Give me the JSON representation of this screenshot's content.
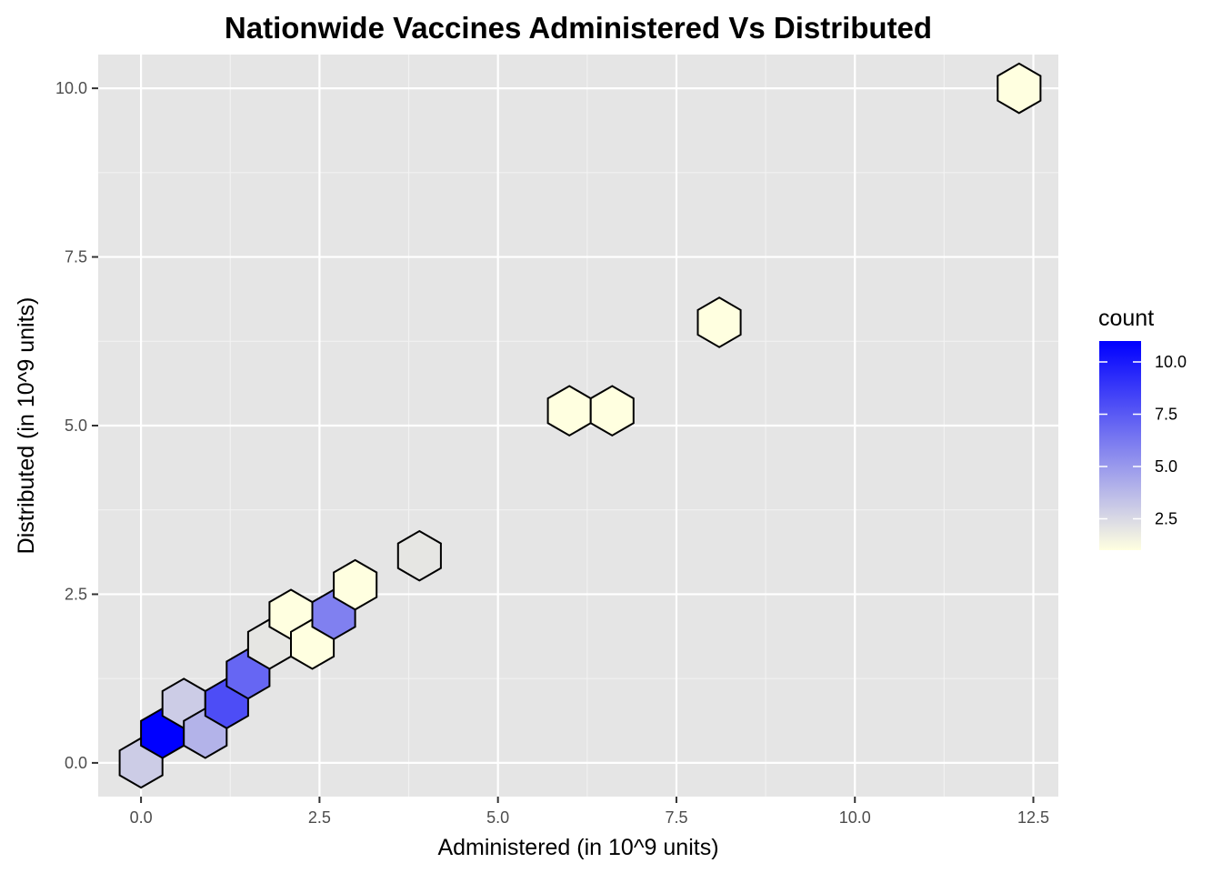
{
  "chart_data": {
    "type": "hexbin",
    "title": "Nationwide Vaccines Administered Vs Distributed",
    "xlabel": "Administered (in 10^9 units)",
    "ylabel": "Distributed (in 10^9 units)",
    "xlim": [
      -0.6,
      12.85
    ],
    "ylim": [
      -0.5,
      10.5
    ],
    "x_ticks": [
      0,
      2.5,
      5,
      7.5,
      10,
      12.5
    ],
    "x_tick_labels": [
      "0.0",
      "2.5",
      "5.0",
      "7.5",
      "10.0",
      "12.5"
    ],
    "y_ticks": [
      0,
      2.5,
      5,
      7.5,
      10
    ],
    "y_tick_labels": [
      "0.0",
      "2.5",
      "5.0",
      "7.5",
      "10.0"
    ],
    "grid": true,
    "legend": {
      "title": "count",
      "position": "right",
      "ticks": [
        2.5,
        5,
        7.5,
        10
      ],
      "tick_labels": [
        "2.5",
        "5.0",
        "7.5",
        "10.0"
      ],
      "min": 1,
      "max": 11
    },
    "color_scale": {
      "low": "#ffffe0",
      "high": "#0000ff"
    },
    "bins": [
      {
        "x": 0.0,
        "y": 0.0,
        "count": 3
      },
      {
        "x": 0.3,
        "y": 0.44,
        "count": 11
      },
      {
        "x": 0.6,
        "y": 0.88,
        "count": 3
      },
      {
        "x": 0.9,
        "y": 0.44,
        "count": 4
      },
      {
        "x": 1.2,
        "y": 0.88,
        "count": 8
      },
      {
        "x": 1.5,
        "y": 1.32,
        "count": 7
      },
      {
        "x": 1.8,
        "y": 1.76,
        "count": 2
      },
      {
        "x": 2.1,
        "y": 2.2,
        "count": 1
      },
      {
        "x": 2.4,
        "y": 1.76,
        "count": 1
      },
      {
        "x": 2.7,
        "y": 2.2,
        "count": 6
      },
      {
        "x": 3.0,
        "y": 2.64,
        "count": 1
      },
      {
        "x": 3.9,
        "y": 3.07,
        "count": 2
      },
      {
        "x": 6.0,
        "y": 5.22,
        "count": 1
      },
      {
        "x": 6.6,
        "y": 5.22,
        "count": 1
      },
      {
        "x": 8.1,
        "y": 6.53,
        "count": 1
      },
      {
        "x": 12.3,
        "y": 10.0,
        "count": 1
      }
    ]
  }
}
